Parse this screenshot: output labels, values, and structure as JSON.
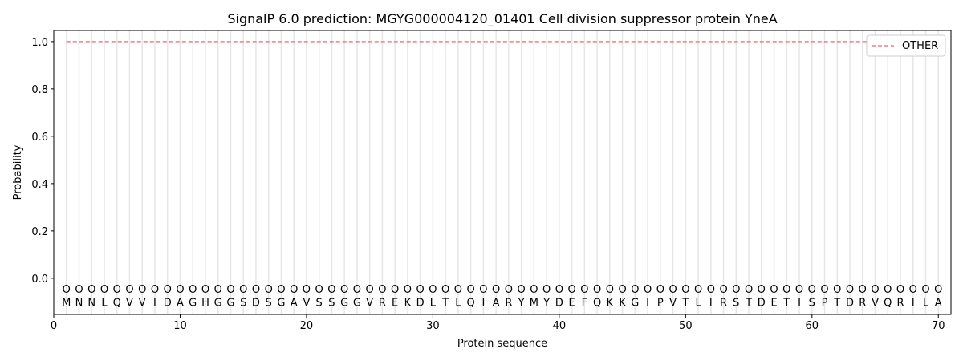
{
  "chart_data": {
    "type": "line",
    "title": "SignalP 6.0 prediction: MGYG000004120_01401 Cell division suppressor protein YneA",
    "xlabel": "Protein sequence",
    "ylabel": "Probability",
    "xlim": [
      0,
      71
    ],
    "ylim": [
      -0.153,
      1.047
    ],
    "xticks": [
      0,
      10,
      20,
      30,
      40,
      50,
      60,
      70
    ],
    "yticks": [
      "0.0",
      "0.2",
      "0.4",
      "0.6",
      "0.8",
      "1.0"
    ],
    "grid": "vertical lines at each residue",
    "legend_position": "top-right",
    "sequence": [
      "M",
      "N",
      "N",
      "L",
      "Q",
      "V",
      "V",
      "I",
      "D",
      "A",
      "G",
      "H",
      "G",
      "G",
      "S",
      "D",
      "S",
      "G",
      "A",
      "V",
      "S",
      "S",
      "G",
      "G",
      "V",
      "R",
      "E",
      "K",
      "D",
      "L",
      "T",
      "L",
      "Q",
      "I",
      "A",
      "R",
      "Y",
      "M",
      "Y",
      "D",
      "E",
      "F",
      "Q",
      "K",
      "K",
      "G",
      "I",
      "P",
      "V",
      "T",
      "L",
      "I",
      "R",
      "S",
      "T",
      "D",
      "E",
      "T",
      "I",
      "S",
      "P",
      "T",
      "D",
      "R",
      "V",
      "Q",
      "R",
      "I",
      "L",
      "A"
    ],
    "predicted_label": "O",
    "series": [
      {
        "name": "OTHER",
        "color": "#f08080",
        "style": "dashed",
        "x_range": [
          1,
          70
        ],
        "value": 1.0
      }
    ]
  }
}
